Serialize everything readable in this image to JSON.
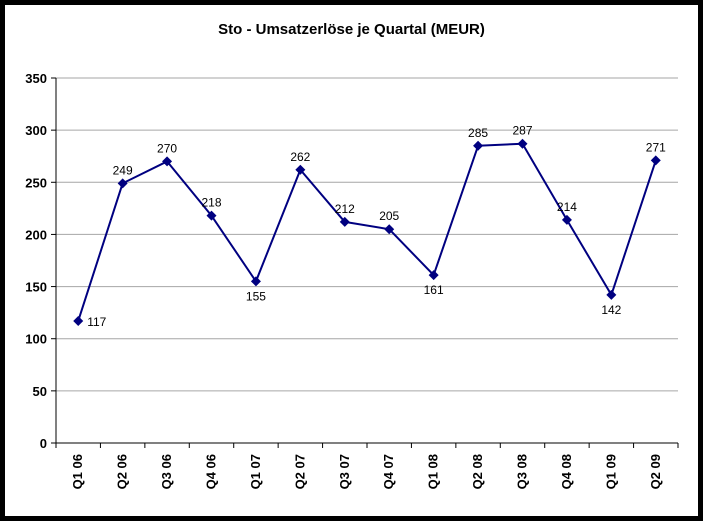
{
  "chart_data": {
    "type": "line",
    "title": "Sto - Umsatzerlöse je Quartal (MEUR)",
    "categories": [
      "Q1 06",
      "Q2 06",
      "Q3 06",
      "Q4 06",
      "Q1 07",
      "Q2 07",
      "Q3 07",
      "Q4 07",
      "Q1 08",
      "Q2 08",
      "Q3 08",
      "Q4 08",
      "Q1 09",
      "Q2 09"
    ],
    "values": [
      117,
      249,
      270,
      218,
      155,
      262,
      212,
      205,
      161,
      285,
      287,
      214,
      142,
      271
    ],
    "label_positions": [
      "right",
      "above",
      "above",
      "above",
      "below",
      "above",
      "above",
      "above",
      "below",
      "above",
      "above",
      "above",
      "below",
      "above"
    ],
    "xlabel": "",
    "ylabel": "",
    "ylim": [
      0,
      350
    ],
    "ytick_step": 50,
    "grid": true,
    "legend": "none",
    "line_color": "#000080",
    "grid_color": "#a6a6a6",
    "axis_color": "#000000",
    "background_color": "#ffffff",
    "frame_color": "#000000"
  }
}
